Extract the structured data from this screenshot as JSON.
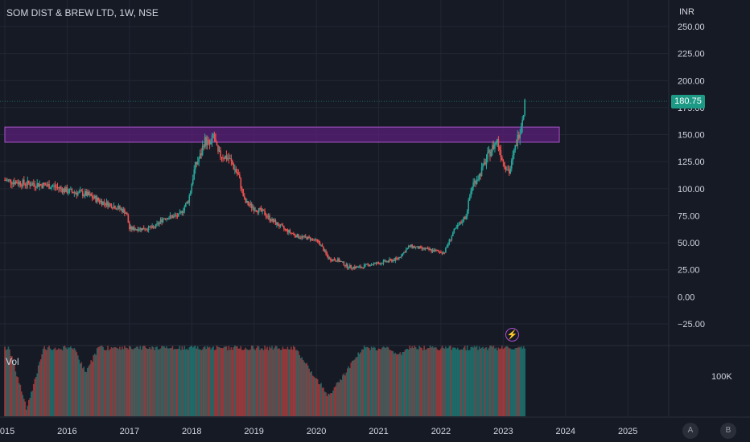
{
  "header": {
    "symbol_title": "SOM DIST & BREW LTD, 1W, NSE"
  },
  "price_axis": {
    "currency": "INR"
  },
  "last_price": {
    "label": "180.75",
    "color": "#1d9a86"
  },
  "volume_pane": {
    "label": "Vol",
    "scale_label": "100K"
  },
  "controls": {
    "a_label": "A",
    "b_label": "B"
  },
  "markers": {
    "event_icon": "lightning-bolt-icon"
  },
  "colors": {
    "up": "#26a69a",
    "down": "#ef5350",
    "zone_fill": "#5b1f7a",
    "zone_border": "#a855c9",
    "background": "#161a25"
  },
  "chart_data": {
    "type": "candlestick",
    "title": "SOM DIST & BREW LTD, 1W, NSE",
    "ylabel": "INR",
    "ylim": [
      -37,
      250
    ],
    "ytick_labels": [
      "250.00",
      "225.00",
      "200.00",
      "175.00",
      "150.00",
      "125.00",
      "100.00",
      "75.00",
      "50.00",
      "25.00",
      "0.00",
      "−25.00"
    ],
    "yticks": [
      250,
      225,
      200,
      175,
      150,
      125,
      100,
      75,
      50,
      25,
      0,
      -25
    ],
    "xtick_labels": [
      "2015",
      "2016",
      "2017",
      "2018",
      "2019",
      "2020",
      "2021",
      "2022",
      "2023",
      "2024",
      "2025"
    ],
    "xticks": [
      2015,
      2016,
      2017,
      2018,
      2019,
      2020,
      2021,
      2022,
      2023,
      2024,
      2025
    ],
    "xlim": [
      2015.0,
      2025.85
    ],
    "last_price": 180.75,
    "resistance_zone": {
      "x_start": 2015.0,
      "x_end": 2023.9,
      "low": 143,
      "high": 157
    },
    "price_path": [
      {
        "t": 2015.0,
        "p": 108
      },
      {
        "t": 2015.3,
        "p": 105
      },
      {
        "t": 2015.55,
        "p": 104
      },
      {
        "t": 2015.8,
        "p": 102
      },
      {
        "t": 2016.0,
        "p": 98
      },
      {
        "t": 2016.3,
        "p": 95
      },
      {
        "t": 2016.55,
        "p": 88
      },
      {
        "t": 2016.8,
        "p": 83
      },
      {
        "t": 2016.95,
        "p": 78
      },
      {
        "t": 2017.0,
        "p": 63
      },
      {
        "t": 2017.2,
        "p": 63
      },
      {
        "t": 2017.4,
        "p": 64
      },
      {
        "t": 2017.55,
        "p": 73
      },
      {
        "t": 2017.8,
        "p": 75
      },
      {
        "t": 2017.95,
        "p": 90
      },
      {
        "t": 2018.05,
        "p": 120
      },
      {
        "t": 2018.15,
        "p": 132
      },
      {
        "t": 2018.2,
        "p": 145
      },
      {
        "t": 2018.3,
        "p": 140
      },
      {
        "t": 2018.35,
        "p": 150
      },
      {
        "t": 2018.42,
        "p": 132
      },
      {
        "t": 2018.6,
        "p": 128
      },
      {
        "t": 2018.75,
        "p": 112
      },
      {
        "t": 2018.85,
        "p": 88
      },
      {
        "t": 2019.0,
        "p": 82
      },
      {
        "t": 2019.15,
        "p": 78
      },
      {
        "t": 2019.3,
        "p": 70
      },
      {
        "t": 2019.5,
        "p": 62
      },
      {
        "t": 2019.7,
        "p": 56
      },
      {
        "t": 2019.9,
        "p": 54
      },
      {
        "t": 2020.05,
        "p": 50
      },
      {
        "t": 2020.2,
        "p": 35
      },
      {
        "t": 2020.35,
        "p": 34
      },
      {
        "t": 2020.5,
        "p": 28
      },
      {
        "t": 2020.7,
        "p": 27
      },
      {
        "t": 2020.85,
        "p": 30
      },
      {
        "t": 2021.0,
        "p": 31
      },
      {
        "t": 2021.3,
        "p": 35
      },
      {
        "t": 2021.5,
        "p": 47
      },
      {
        "t": 2021.65,
        "p": 45
      },
      {
        "t": 2021.85,
        "p": 43
      },
      {
        "t": 2022.05,
        "p": 41
      },
      {
        "t": 2022.2,
        "p": 60
      },
      {
        "t": 2022.3,
        "p": 67
      },
      {
        "t": 2022.4,
        "p": 75
      },
      {
        "t": 2022.5,
        "p": 103
      },
      {
        "t": 2022.62,
        "p": 113
      },
      {
        "t": 2022.75,
        "p": 130
      },
      {
        "t": 2022.9,
        "p": 145
      },
      {
        "t": 2023.0,
        "p": 125
      },
      {
        "t": 2023.1,
        "p": 115
      },
      {
        "t": 2023.2,
        "p": 140
      },
      {
        "t": 2023.28,
        "p": 158
      },
      {
        "t": 2023.35,
        "p": 180.75
      }
    ],
    "volume_pane": {
      "label": "Vol",
      "scale_label": "100K"
    }
  }
}
